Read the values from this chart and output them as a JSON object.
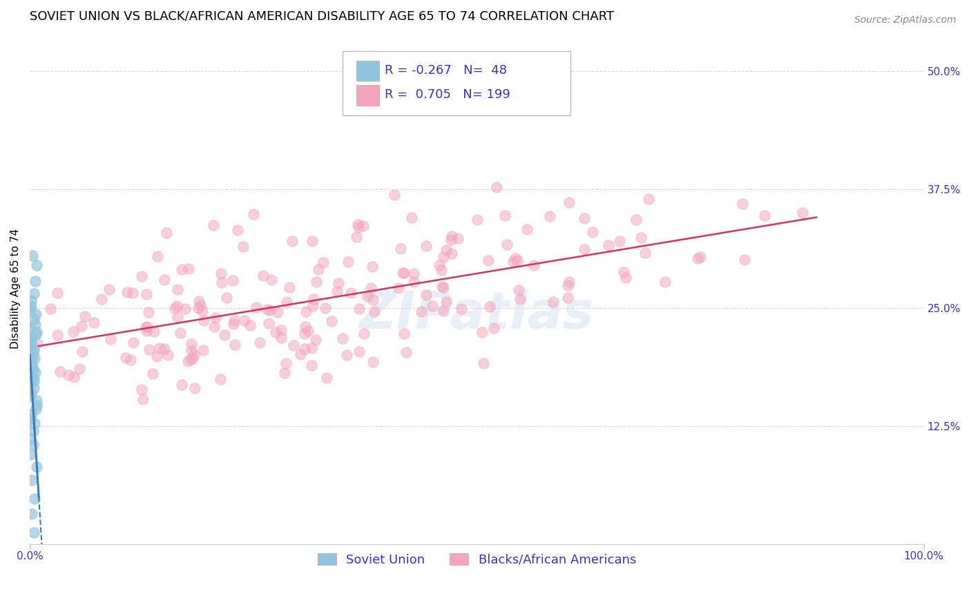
{
  "title": "SOVIET UNION VS BLACK/AFRICAN AMERICAN DISABILITY AGE 65 TO 74 CORRELATION CHART",
  "source": "Source: ZipAtlas.com",
  "ylabel": "Disability Age 65 to 74",
  "R1": -0.267,
  "N1": 48,
  "R2": 0.705,
  "N2": 199,
  "legend_label_1": "Soviet Union",
  "legend_label_2": "Blacks/African Americans",
  "color_soviet": "#92c5de",
  "color_soviet_edge": "#92c5de",
  "color_soviet_line": "#3a7abf",
  "color_black": "#f4a6bd",
  "color_black_edge": "#f4a6bd",
  "color_black_line": "#d63060",
  "color_blue_text": "#3333cc",
  "watermark": "ZIPatlas",
  "xlim": [
    0.0,
    1.0
  ],
  "ylim": [
    0.0,
    0.54
  ],
  "yticks": [
    0.0,
    0.125,
    0.25,
    0.375,
    0.5
  ],
  "ytick_labels": [
    "",
    "12.5%",
    "25.0%",
    "37.5%",
    "50.0%"
  ],
  "xtick_labels": [
    "0.0%",
    "100.0%"
  ],
  "background_color": "#ffffff",
  "grid_color": "#cccccc",
  "soviet_y": [
    0.305,
    0.295,
    0.278,
    0.265,
    0.258,
    0.252,
    0.248,
    0.243,
    0.238,
    0.232,
    0.228,
    0.224,
    0.222,
    0.218,
    0.215,
    0.212,
    0.208,
    0.205,
    0.202,
    0.198,
    0.196,
    0.193,
    0.19,
    0.187,
    0.185,
    0.182,
    0.178,
    0.175,
    0.172,
    0.17,
    0.165,
    0.16,
    0.156,
    0.152,
    0.147,
    0.143,
    0.138,
    0.133,
    0.128,
    0.12,
    0.112,
    0.105,
    0.095,
    0.082,
    0.068,
    0.048,
    0.032,
    0.012
  ],
  "black_seed": 42,
  "black_N": 199,
  "title_fontsize": 13,
  "axis_fontsize": 11,
  "tick_fontsize": 11,
  "legend_fontsize": 13,
  "marker_size": 11,
  "marker_alpha": 0.55
}
